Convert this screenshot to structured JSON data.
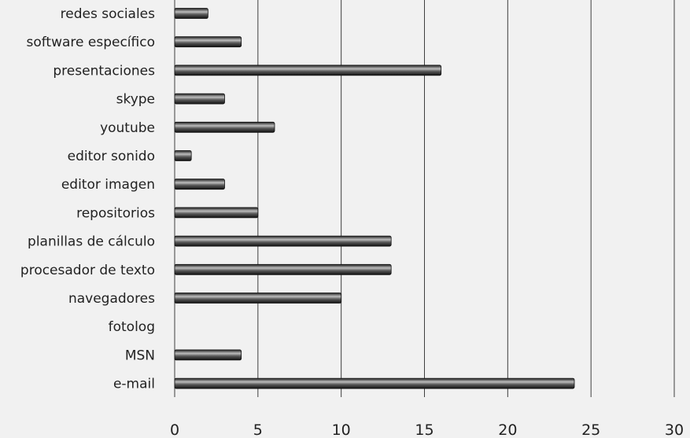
{
  "chart_data": {
    "type": "bar",
    "orientation": "horizontal",
    "title": "",
    "xlabel": "",
    "ylabel": "",
    "categories": [
      "redes sociales",
      "software específico",
      "presentaciones",
      "skype",
      "youtube",
      "editor sonido",
      "editor imagen",
      "repositorios",
      "planillas de cálculo",
      "procesador de texto",
      "navegadores",
      "fotolog",
      "MSN",
      "e-mail"
    ],
    "values": [
      2,
      4,
      16,
      3,
      6,
      1,
      3,
      5,
      13,
      13,
      10,
      0,
      4,
      24
    ],
    "xlim": [
      0,
      30
    ],
    "xticks": [
      0,
      5,
      10,
      15,
      20,
      25,
      30
    ],
    "grid": "vertical",
    "legend": "none",
    "colors": {
      "bar": "#3a3a3a",
      "bar_highlight": "#bdbdbd",
      "grid": "#3f3f3f",
      "background": "#f1f1f1"
    }
  }
}
